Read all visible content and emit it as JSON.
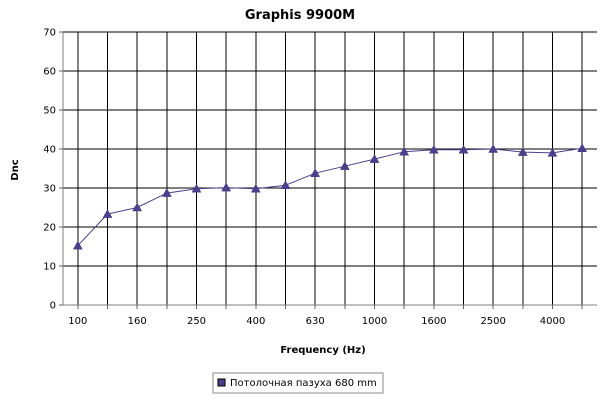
{
  "chart_data": {
    "type": "line",
    "title": "Graphis 9900M",
    "xlabel": "Frequency (Hz)",
    "ylabel": "Dnc",
    "ylim": [
      0,
      70
    ],
    "yticks": [
      0,
      10,
      20,
      30,
      40,
      50,
      60,
      70
    ],
    "x": [
      "100",
      "125",
      "160",
      "200",
      "250",
      "315",
      "400",
      "500",
      "630",
      "800",
      "1000",
      "1250",
      "1600",
      "2000",
      "2500",
      "3150",
      "4000",
      "5000"
    ],
    "x_tick_labels": [
      "100",
      "",
      "160",
      "",
      "250",
      "",
      "400",
      "",
      "630",
      "",
      "1000",
      "",
      "1600",
      "",
      "2500",
      "",
      "4000",
      ""
    ],
    "grid": true,
    "legend_position": "bottom",
    "series": [
      {
        "name": "Потолочная пазуха 680 mm",
        "values": [
          15.2,
          23.3,
          25.0,
          28.7,
          29.8,
          30.1,
          29.8,
          30.7,
          33.8,
          35.6,
          37.4,
          39.3,
          39.8,
          39.8,
          40.0,
          39.2,
          39.0,
          40.2
        ],
        "color": "#4a3f8c"
      }
    ]
  }
}
